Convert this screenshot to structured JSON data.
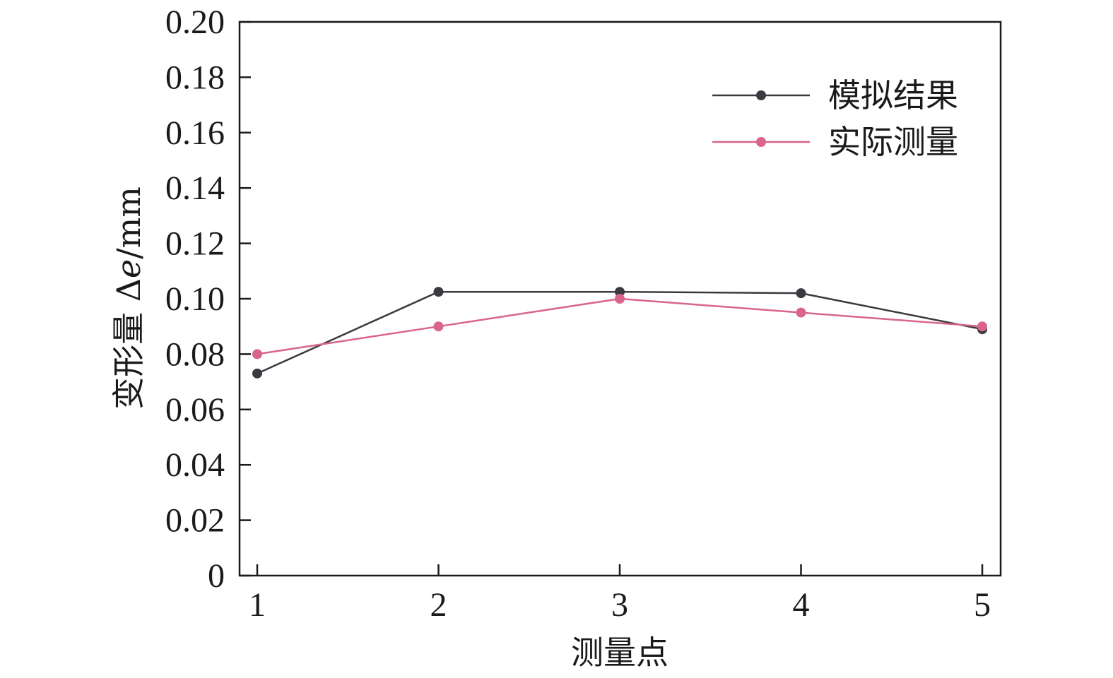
{
  "chart_data": {
    "type": "line",
    "x": [
      1,
      2,
      3,
      4,
      5
    ],
    "x_tick_labels": [
      "1",
      "2",
      "3",
      "4",
      "5"
    ],
    "y_tick_labels": [
      "0",
      "0.02",
      "0.04",
      "0.06",
      "0.08",
      "0.10",
      "0.12",
      "0.14",
      "0.16",
      "0.18",
      "0.20"
    ],
    "ylim": [
      0,
      0.2
    ],
    "xlabel": "测量点",
    "ylabel_prefix": "变形量 Δ",
    "ylabel_var": "e",
    "ylabel_unit": "/mm",
    "grid": false,
    "legend_position": "top-right",
    "series": [
      {
        "name": "模拟结果",
        "color": "#3a3a40",
        "values": [
          0.073,
          0.1025,
          0.1025,
          0.102,
          0.089
        ]
      },
      {
        "name": "实际测量",
        "color": "#d9648c",
        "values": [
          0.08,
          0.09,
          0.1,
          0.095,
          0.09
        ]
      }
    ]
  }
}
